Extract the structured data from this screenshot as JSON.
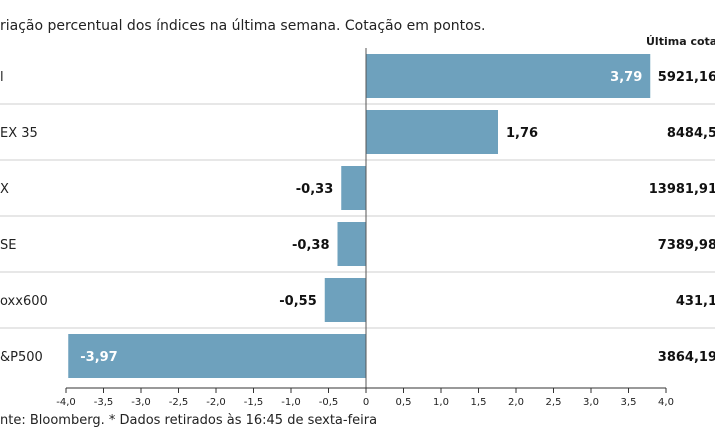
{
  "subtitle": "riação percentual dos índices na última semana. Cotação em pontos.",
  "last_header": "Última cotaç",
  "source": "nte: Bloomberg.  * Dados retirados às 16:45 de sexta-feira",
  "chart_data": {
    "type": "bar",
    "orientation": "horizontal",
    "categories": [
      "l",
      "EX 35",
      "X",
      "SE",
      "oxx600",
      "&P500"
    ],
    "values": [
      3.79,
      1.76,
      -0.33,
      -0.38,
      -0.55,
      -3.97
    ],
    "value_labels": [
      "3,79",
      "1,76",
      "-0,33",
      "-0,38",
      "-0,55",
      "-3,97"
    ],
    "last_quote": [
      "5921,16",
      "8484,5",
      "13981,91",
      "7389,98",
      "431,1",
      "3864,19"
    ],
    "xlim": [
      -4.0,
      4.0
    ],
    "ticks": [
      -4.0,
      -3.5,
      -3.0,
      -2.5,
      -2.0,
      -1.5,
      -1.0,
      -0.5,
      0,
      0.5,
      1.0,
      1.5,
      2.0,
      2.5,
      3.0,
      3.5,
      4.0
    ],
    "tick_labels": [
      "-4,0",
      "-3,5",
      "-3,0",
      "-2,5",
      "-2,0",
      "-1,5",
      "-1,0",
      "-0,5",
      "0",
      "0,5",
      "1,0",
      "1,5",
      "2,0",
      "2,5",
      "3,0",
      "3,5",
      "4,0"
    ],
    "bar_color": "#6ea1bd",
    "inside_label_color": "#ffffff",
    "outside_label_color": "#111111"
  }
}
